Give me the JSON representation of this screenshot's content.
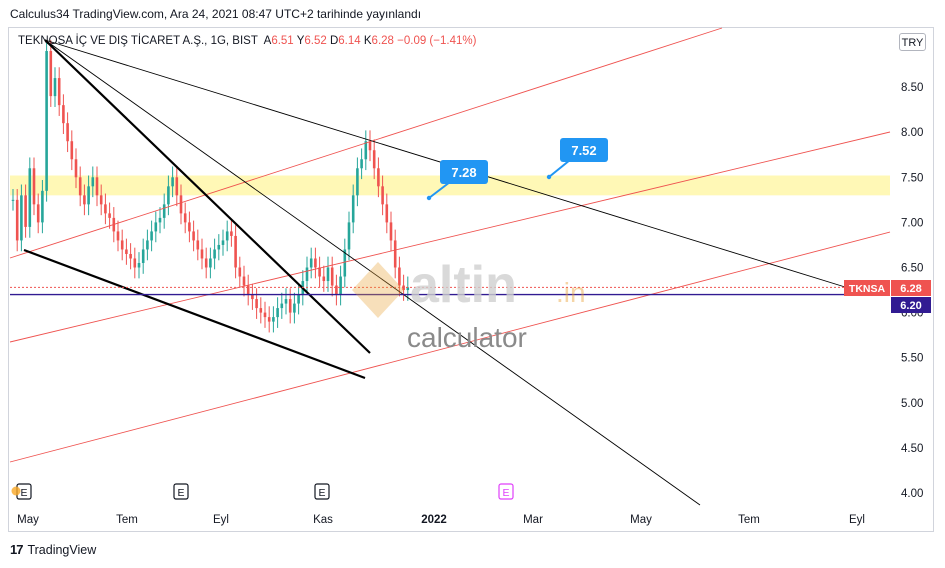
{
  "header": {
    "text": "Calculus34 TradingView.com, Ara 24, 2021 08:47 UTC+2 tarihinde yayınlandı"
  },
  "legend": {
    "title": "TEKNOSA İÇ VE DIŞ TİCARET A.Ş., 1G, BIST",
    "open_label": "A",
    "open_value": "6.51",
    "high_label": "Y",
    "high_value": "6.52",
    "low_label": "D",
    "low_value": "6.14",
    "close_label": "K",
    "close_value": "6.28",
    "change": "−0.09 (−1.41%)"
  },
  "currency_button": "TRY",
  "footer": {
    "logo_glyph": "17",
    "brand": "TradingView"
  },
  "watermark": {
    "main": "altin",
    "suffix": ".in",
    "sub": "calculator"
  },
  "colors": {
    "up": "#26a69a",
    "down": "#ef5350",
    "zone": "#fff59d",
    "hline": "#311b92",
    "callout": "#2196f3",
    "ticker_badge": "#ef5350",
    "level_badge": "#311b92"
  },
  "chart_data": {
    "type": "candlestick",
    "symbol": "TKNSA",
    "ylim": [
      3.9,
      9.2
    ],
    "y_ticks": [
      "4.00",
      "4.50",
      "5.00",
      "5.50",
      "6.00",
      "6.50",
      "7.00",
      "7.50",
      "8.00",
      "8.50"
    ],
    "x_ticks": [
      "May",
      "Tem",
      "Eyl",
      "Kas",
      "2022",
      "Mar",
      "May",
      "Tem",
      "Eyl"
    ],
    "price_badges": [
      {
        "label": "TKNSA",
        "value": "6.28"
      },
      {
        "label": "",
        "value": "6.20"
      }
    ],
    "horizontal_line": 6.2,
    "zone": [
      7.3,
      7.52
    ],
    "callouts": [
      "7.28",
      "7.52"
    ],
    "event_markers": [
      "E",
      "E",
      "E",
      "E"
    ],
    "series": [
      {
        "values": [
          7.25,
          6.8,
          7.3,
          6.95,
          7.6,
          7.2,
          7.0,
          7.35,
          8.9,
          8.4,
          8.6,
          8.3,
          8.1,
          7.9,
          7.7,
          7.5,
          7.3,
          7.2,
          7.4,
          7.5,
          7.3,
          7.2,
          7.1,
          7.05,
          6.9,
          6.8,
          6.7,
          6.65,
          6.6,
          6.5,
          6.55,
          6.7,
          6.8,
          6.9,
          7.0,
          7.05,
          7.2,
          7.4,
          7.5,
          7.3,
          7.1,
          7.0,
          6.9,
          6.8,
          6.7,
          6.6,
          6.5,
          6.6,
          6.7,
          6.75,
          6.8,
          6.9,
          6.85,
          6.5,
          6.4,
          6.3,
          6.2,
          6.15,
          6.05,
          6.0,
          5.95,
          5.9,
          5.95,
          6.05,
          6.1,
          6.15,
          6.0,
          6.1,
          6.2,
          6.35,
          6.5,
          6.6,
          6.5,
          6.4,
          6.35,
          6.5,
          6.3,
          6.2,
          6.4,
          6.7,
          7.0,
          7.3,
          7.6,
          7.7,
          7.9,
          7.8,
          7.6,
          7.4,
          7.2,
          7.0,
          6.8,
          6.5,
          6.3,
          6.25,
          6.28
        ]
      }
    ]
  }
}
